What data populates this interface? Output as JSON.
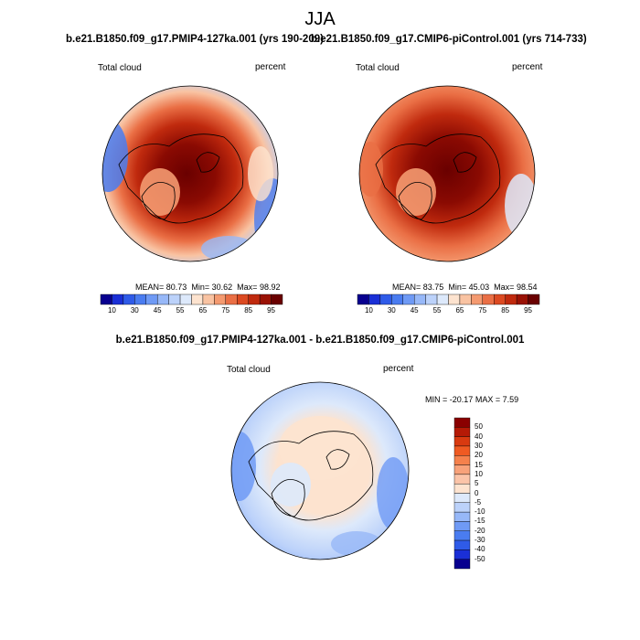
{
  "figure": {
    "title": "JJA"
  },
  "chart_data": [
    {
      "type": "heatmap",
      "title": "b.e21.B1850.f09_g17.PMIP4-127ka.001 (yrs 190-209)",
      "variable": "Total cloud",
      "units": "percent",
      "projection": "north polar stereographic",
      "stats": {
        "mean_label": "MEAN=",
        "mean": "80.73",
        "min_label": "Min=",
        "min": "30.62",
        "max_label": "Max=",
        "max": "98.92"
      },
      "colorbar": {
        "orientation": "horizontal",
        "levels": [
          10,
          20,
          30,
          40,
          45,
          50,
          55,
          60,
          65,
          70,
          75,
          80,
          85,
          90,
          95
        ],
        "tick_labels": [
          "10",
          "30",
          "45",
          "55",
          "65",
          "75",
          "85",
          "95"
        ],
        "colors": [
          "#08008f",
          "#1a2fd6",
          "#2f5be8",
          "#4a7cf0",
          "#6f9af5",
          "#97b8f8",
          "#bcd2fa",
          "#dde9fb",
          "#fde3cf",
          "#f9c3a2",
          "#f49a70",
          "#ea6f45",
          "#dc4a22",
          "#c02a0e",
          "#9a1205",
          "#6a0000"
        ]
      }
    },
    {
      "type": "heatmap",
      "title": "b.e21.B1850.f09_g17.CMIP6-piControl.001 (yrs 714-733)",
      "variable": "Total cloud",
      "units": "percent",
      "projection": "north polar stereographic",
      "stats": {
        "mean_label": "MEAN=",
        "mean": "83.75",
        "min_label": "Min=",
        "min": "45.03",
        "max_label": "Max=",
        "max": "98.54"
      },
      "colorbar": {
        "orientation": "horizontal",
        "levels": [
          10,
          20,
          30,
          40,
          45,
          50,
          55,
          60,
          65,
          70,
          75,
          80,
          85,
          90,
          95
        ],
        "tick_labels": [
          "10",
          "30",
          "45",
          "55",
          "65",
          "75",
          "85",
          "95"
        ],
        "colors": [
          "#08008f",
          "#1a2fd6",
          "#2f5be8",
          "#4a7cf0",
          "#6f9af5",
          "#97b8f8",
          "#bcd2fa",
          "#dde9fb",
          "#fde3cf",
          "#f9c3a2",
          "#f49a70",
          "#ea6f45",
          "#dc4a22",
          "#c02a0e",
          "#9a1205",
          "#6a0000"
        ]
      }
    },
    {
      "type": "heatmap",
      "title": "b.e21.B1850.f09_g17.PMIP4-127ka.001 - b.e21.B1850.f09_g17.CMIP6-piControl.001",
      "variable": "Total cloud",
      "units": "percent",
      "projection": "north polar stereographic",
      "stats": {
        "min_label": "MIN =",
        "min": "-20.17",
        "max_label": "MAX =",
        "max": "7.59"
      },
      "colorbar": {
        "orientation": "vertical",
        "levels": [
          50,
          40,
          30,
          20,
          15,
          10,
          5,
          0,
          -5,
          -10,
          -15,
          -20,
          -30,
          -40,
          -50
        ],
        "tick_labels": [
          "50",
          "40",
          "30",
          "20",
          "15",
          "10",
          "5",
          "0",
          "-5",
          "-10",
          "-15",
          "-20",
          "-30",
          "-40",
          "-50"
        ],
        "colors": [
          "#8a0000",
          "#b51a06",
          "#d83a10",
          "#ef5a22",
          "#f5814c",
          "#f8a27a",
          "#fbc4a8",
          "#fde3cf",
          "#dde9fb",
          "#bcd2fa",
          "#97b8f8",
          "#6f9af5",
          "#4a7cf0",
          "#2f5be8",
          "#1a2fd6",
          "#08008f"
        ]
      }
    }
  ]
}
